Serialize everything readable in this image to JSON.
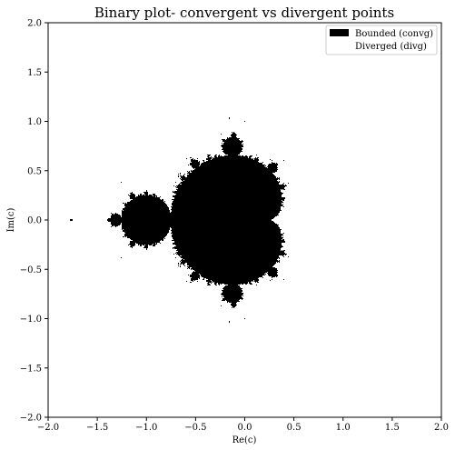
{
  "chart_data": {
    "type": "heatmap",
    "title": "Binary plot- convergent vs divergent points",
    "xlabel": "Re(c)",
    "ylabel": "Im(c)",
    "xlim": [
      -2.0,
      2.0
    ],
    "ylim": [
      -2.0,
      2.0
    ],
    "xticks": [
      "−2.0",
      "−1.5",
      "−1.0",
      "−0.5",
      "0.0",
      "0.5",
      "1.0",
      "1.5",
      "2.0"
    ],
    "yticks": [
      "−2.0",
      "−1.5",
      "−1.0",
      "−0.5",
      "0.0",
      "0.5",
      "1.0",
      "1.5",
      "2.0"
    ],
    "grid": false,
    "legend_position": "top-right",
    "series": [
      {
        "name": "Bounded (convg)",
        "color": "#000000"
      },
      {
        "name": "Diverged (divg)",
        "color": "#ffffff"
      }
    ],
    "max_iterations": 60
  }
}
